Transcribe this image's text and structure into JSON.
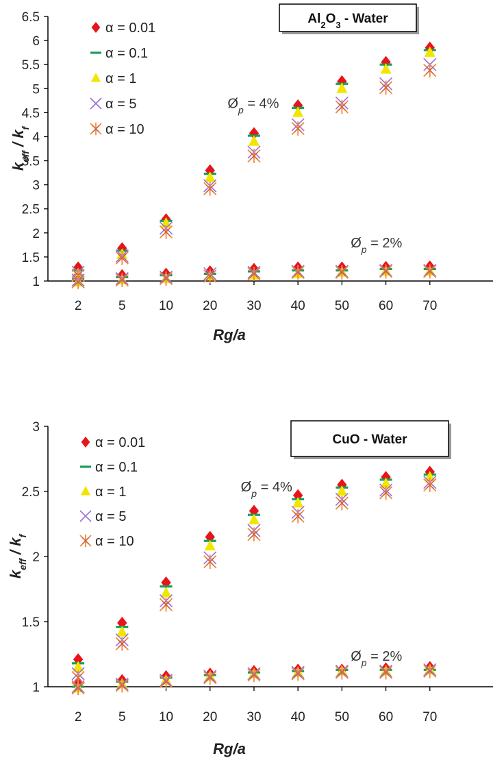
{
  "colors": {
    "a001": "#e8141c",
    "a01": "#1a9e57",
    "a1": "#f2e600",
    "a5": "#9b6fd6",
    "a10": "#ef8a3c",
    "a10_stroke2": "#c0504d",
    "axis": "#000000"
  },
  "chart_data": [
    {
      "type": "scatter",
      "title": "Al2O3 - Water",
      "title_parts": [
        {
          "t": "Al",
          "sub": false
        },
        {
          "t": "2",
          "sub": true
        },
        {
          "t": "O",
          "sub": false
        },
        {
          "t": "3",
          "sub": true
        },
        {
          "t": " - Water",
          "sub": false
        }
      ],
      "xlabel": "Rg/a",
      "ylabel_parts": [
        {
          "t": "k",
          "sub": false
        },
        {
          "t": "eff",
          "sub": true
        },
        {
          "t": " / k",
          "sub": false
        },
        {
          "t": "f",
          "sub": true
        }
      ],
      "categories": [
        "2",
        "5",
        "10",
        "20",
        "30",
        "40",
        "50",
        "60",
        "70"
      ],
      "ylim": [
        1,
        6.5
      ],
      "yticks": [
        "1",
        "1.5",
        "2",
        "2.5",
        "3",
        "3.5",
        "4",
        "4.5",
        "5",
        "5.5",
        "6",
        "6.5"
      ],
      "legend_position": "top-left",
      "annotations": [
        {
          "base": "Ø",
          "sub": "p",
          "rest": " = 4%",
          "cat": 3.4,
          "y": 4.6
        },
        {
          "base": "Ø",
          "sub": "p",
          "rest": " = 2%",
          "cat": 6.2,
          "y": 1.7
        }
      ],
      "series": [
        {
          "name": "α = 0.01",
          "marker": "diamond",
          "values_4pct": [
            1.28,
            1.68,
            2.28,
            3.3,
            4.07,
            4.65,
            5.15,
            5.55,
            5.85
          ],
          "values_2pct": [
            1.12,
            1.12,
            1.15,
            1.2,
            1.25,
            1.28,
            1.28,
            1.29,
            1.3
          ]
        },
        {
          "name": "α = 0.1",
          "marker": "dash",
          "values_4pct": [
            1.22,
            1.63,
            2.25,
            3.23,
            4.02,
            4.6,
            5.1,
            5.5,
            5.8
          ],
          "values_2pct": [
            1.05,
            1.08,
            1.12,
            1.15,
            1.2,
            1.22,
            1.22,
            1.25,
            1.25
          ]
        },
        {
          "name": "α = 1",
          "marker": "triangle",
          "values_4pct": [
            1.15,
            1.55,
            2.2,
            3.15,
            3.9,
            4.5,
            5.0,
            5.4,
            5.75
          ],
          "values_2pct": [
            0.98,
            1.02,
            1.05,
            1.1,
            1.12,
            1.15,
            1.18,
            1.2,
            1.2
          ]
        },
        {
          "name": "α = 5",
          "marker": "x",
          "values_4pct": [
            1.18,
            1.52,
            2.1,
            2.98,
            3.68,
            4.25,
            4.7,
            5.1,
            5.5
          ],
          "values_2pct": [
            1.02,
            1.05,
            1.08,
            1.15,
            1.18,
            1.2,
            1.2,
            1.22,
            1.22
          ]
        },
        {
          "name": "α = 10",
          "marker": "asterisk",
          "values_4pct": [
            1.12,
            1.48,
            2.02,
            2.92,
            3.6,
            4.17,
            4.62,
            5.02,
            5.38
          ],
          "values_2pct": [
            0.98,
            1.02,
            1.05,
            1.1,
            1.15,
            1.18,
            1.18,
            1.2,
            1.2
          ]
        }
      ]
    },
    {
      "type": "scatter",
      "title": "CuO - Water",
      "title_parts": [
        {
          "t": "CuO - Water",
          "sub": false
        }
      ],
      "xlabel": "Rg/a",
      "ylabel_parts": [
        {
          "t": "k",
          "sub": false
        },
        {
          "t": "eff",
          "sub": true
        },
        {
          "t": " / k",
          "sub": false
        },
        {
          "t": "f",
          "sub": true
        }
      ],
      "categories": [
        "2",
        "5",
        "10",
        "20",
        "30",
        "40",
        "50",
        "60",
        "70"
      ],
      "ylim": [
        1,
        3
      ],
      "yticks": [
        "1",
        "1.5",
        "2",
        "2.5",
        "3"
      ],
      "legend_position": "top-left",
      "annotations": [
        {
          "base": "Ø",
          "sub": "p",
          "rest": " = 4%",
          "cat": 3.7,
          "y": 2.5
        },
        {
          "base": "Ø",
          "sub": "p",
          "rest": " = 2%",
          "cat": 6.2,
          "y": 1.2
        }
      ],
      "series": [
        {
          "name": "α = 0.01",
          "marker": "diamond",
          "values_4pct": [
            1.21,
            1.49,
            1.8,
            2.15,
            2.35,
            2.47,
            2.55,
            2.61,
            2.65
          ],
          "values_2pct": [
            1.02,
            1.05,
            1.08,
            1.1,
            1.12,
            1.13,
            1.13,
            1.14,
            1.15
          ]
        },
        {
          "name": "α = 0.1",
          "marker": "dash",
          "values_4pct": [
            1.18,
            1.46,
            1.77,
            2.12,
            2.32,
            2.44,
            2.53,
            2.59,
            2.63
          ],
          "values_2pct": [
            1.0,
            1.04,
            1.07,
            1.09,
            1.11,
            1.12,
            1.13,
            1.13,
            1.13
          ]
        },
        {
          "name": "α = 1",
          "marker": "triangle",
          "values_4pct": [
            1.15,
            1.42,
            1.72,
            2.08,
            2.28,
            2.41,
            2.5,
            2.56,
            2.61
          ],
          "values_2pct": [
            0.99,
            1.02,
            1.05,
            1.08,
            1.1,
            1.11,
            1.12,
            1.12,
            1.13
          ]
        },
        {
          "name": "α = 5",
          "marker": "x",
          "values_4pct": [
            1.1,
            1.36,
            1.66,
            1.99,
            2.2,
            2.34,
            2.44,
            2.51,
            2.57
          ],
          "values_2pct": [
            1.0,
            1.02,
            1.05,
            1.08,
            1.1,
            1.11,
            1.12,
            1.12,
            1.13
          ]
        },
        {
          "name": "α = 10",
          "marker": "asterisk",
          "values_4pct": [
            1.07,
            1.33,
            1.63,
            1.96,
            2.17,
            2.31,
            2.41,
            2.49,
            2.55
          ],
          "values_2pct": [
            0.99,
            1.01,
            1.04,
            1.07,
            1.09,
            1.1,
            1.11,
            1.11,
            1.12
          ]
        }
      ]
    }
  ]
}
